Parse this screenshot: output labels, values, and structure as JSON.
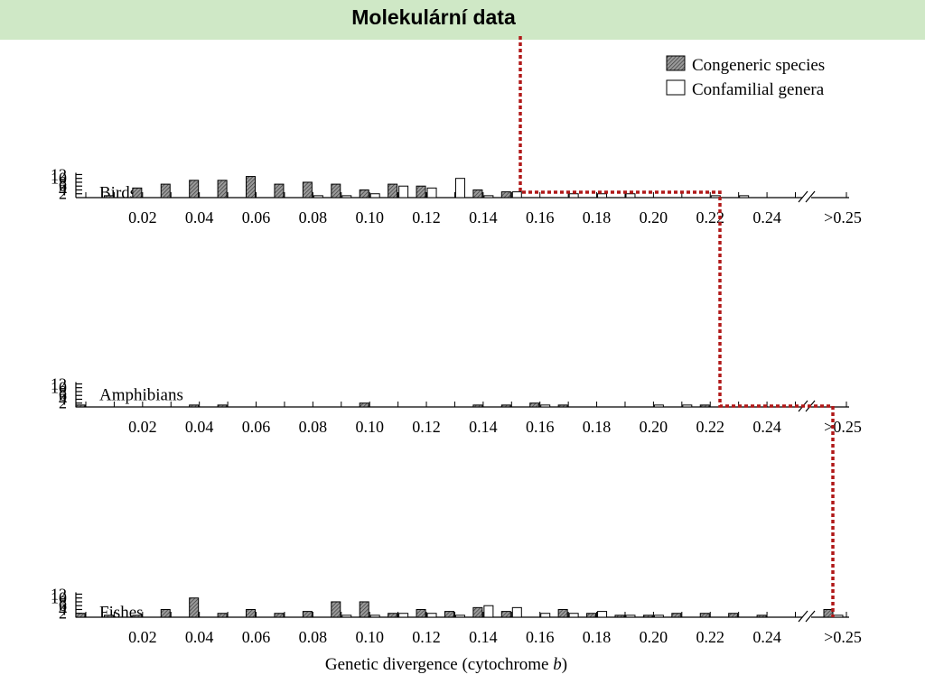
{
  "slide": {
    "title": "Molekulární data"
  },
  "legend": {
    "congeneric": "Congeneric species",
    "confamilial": "Confamilial genera"
  },
  "x_axis": {
    "title_prefix": "Genetic divergence (cytochrome ",
    "title_italic": "b",
    "title_suffix": ")",
    "tick_labels": [
      "0.02",
      "0.04",
      "0.06",
      "0.08",
      "0.10",
      "0.12",
      "0.14",
      "0.16",
      "0.18",
      "0.20",
      "0.22",
      "0.24",
      ">0.25"
    ]
  },
  "colors": {
    "congeneric_fill": "#6e6e6e",
    "confamilial_fill": "#ffffff",
    "annotation_line": "#b01818"
  },
  "chart_data": [
    {
      "type": "bar",
      "panel": "Birds",
      "title": "Birds",
      "ylim": [
        0,
        12
      ],
      "y_ticks": [
        2,
        4,
        6,
        8,
        10,
        12
      ],
      "congeneric": [
        {
          "x": 0.01,
          "y": 1
        },
        {
          "x": 0.02,
          "y": 5
        },
        {
          "x": 0.03,
          "y": 7
        },
        {
          "x": 0.04,
          "y": 9
        },
        {
          "x": 0.05,
          "y": 9
        },
        {
          "x": 0.06,
          "y": 11
        },
        {
          "x": 0.07,
          "y": 7
        },
        {
          "x": 0.08,
          "y": 8
        },
        {
          "x": 0.09,
          "y": 7
        },
        {
          "x": 0.1,
          "y": 4
        },
        {
          "x": 0.11,
          "y": 7
        },
        {
          "x": 0.12,
          "y": 6
        },
        {
          "x": 0.14,
          "y": 4
        },
        {
          "x": 0.15,
          "y": 3
        }
      ],
      "confamilial": [
        {
          "x": 0.08,
          "y": 1
        },
        {
          "x": 0.09,
          "y": 1
        },
        {
          "x": 0.1,
          "y": 2
        },
        {
          "x": 0.11,
          "y": 6
        },
        {
          "x": 0.12,
          "y": 5
        },
        {
          "x": 0.13,
          "y": 10
        },
        {
          "x": 0.14,
          "y": 1
        },
        {
          "x": 0.15,
          "y": 3
        },
        {
          "x": 0.17,
          "y": 2
        },
        {
          "x": 0.18,
          "y": 2
        },
        {
          "x": 0.19,
          "y": 2
        },
        {
          "x": 0.22,
          "y": 1
        },
        {
          "x": 0.23,
          "y": 1
        }
      ],
      "congeneric_gt025": 0,
      "confamilial_gt025": 0
    },
    {
      "type": "bar",
      "panel": "Amphibians",
      "title": "Amphibians",
      "ylim": [
        0,
        12
      ],
      "y_ticks": [
        2,
        4,
        6,
        8,
        10,
        12
      ],
      "congeneric": [
        {
          "x": 0.0,
          "y": 1
        },
        {
          "x": 0.04,
          "y": 1
        },
        {
          "x": 0.05,
          "y": 1
        },
        {
          "x": 0.1,
          "y": 2
        },
        {
          "x": 0.14,
          "y": 1
        },
        {
          "x": 0.15,
          "y": 1
        },
        {
          "x": 0.16,
          "y": 2
        },
        {
          "x": 0.17,
          "y": 1
        },
        {
          "x": 0.22,
          "y": 1
        }
      ],
      "confamilial": [
        {
          "x": 0.16,
          "y": 1
        },
        {
          "x": 0.2,
          "y": 1
        },
        {
          "x": 0.21,
          "y": 1
        }
      ],
      "congeneric_gt025": 0,
      "confamilial_gt025": 0
    },
    {
      "type": "bar",
      "panel": "Fishes",
      "title": "Fishes",
      "ylim": [
        0,
        12
      ],
      "y_ticks": [
        2,
        4,
        6,
        8,
        10,
        12
      ],
      "congeneric": [
        {
          "x": 0.0,
          "y": 2
        },
        {
          "x": 0.01,
          "y": 1
        },
        {
          "x": 0.02,
          "y": 1
        },
        {
          "x": 0.03,
          "y": 4
        },
        {
          "x": 0.04,
          "y": 10
        },
        {
          "x": 0.05,
          "y": 2
        },
        {
          "x": 0.06,
          "y": 4
        },
        {
          "x": 0.07,
          "y": 2
        },
        {
          "x": 0.08,
          "y": 3
        },
        {
          "x": 0.09,
          "y": 8
        },
        {
          "x": 0.1,
          "y": 8
        },
        {
          "x": 0.11,
          "y": 2
        },
        {
          "x": 0.12,
          "y": 4
        },
        {
          "x": 0.13,
          "y": 3
        },
        {
          "x": 0.14,
          "y": 5
        },
        {
          "x": 0.15,
          "y": 3
        },
        {
          "x": 0.17,
          "y": 4
        },
        {
          "x": 0.18,
          "y": 2
        },
        {
          "x": 0.19,
          "y": 1
        },
        {
          "x": 0.2,
          "y": 1
        },
        {
          "x": 0.21,
          "y": 2
        },
        {
          "x": 0.22,
          "y": 2
        },
        {
          "x": 0.23,
          "y": 2
        },
        {
          "x": 0.24,
          "y": 1
        }
      ],
      "confamilial": [
        {
          "x": 0.09,
          "y": 1
        },
        {
          "x": 0.1,
          "y": 1
        },
        {
          "x": 0.11,
          "y": 2
        },
        {
          "x": 0.12,
          "y": 2
        },
        {
          "x": 0.13,
          "y": 1
        },
        {
          "x": 0.14,
          "y": 6
        },
        {
          "x": 0.15,
          "y": 5
        },
        {
          "x": 0.16,
          "y": 2
        },
        {
          "x": 0.17,
          "y": 2
        },
        {
          "x": 0.18,
          "y": 3
        },
        {
          "x": 0.19,
          "y": 1
        },
        {
          "x": 0.2,
          "y": 1
        }
      ],
      "congeneric_gt025": 4,
      "confamilial_gt025": 1
    }
  ]
}
